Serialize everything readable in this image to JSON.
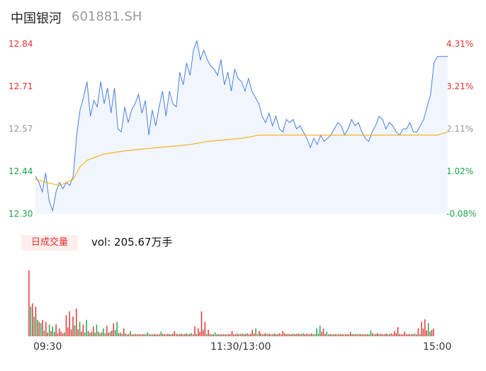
{
  "header": {
    "name": "中国银河",
    "code": "601881.SH"
  },
  "colors": {
    "up": "#e2312f",
    "down": "#1aa34a",
    "neutral": "#999999",
    "price_line": "#4a7fe0",
    "avg_line": "#f5b31f"
  },
  "chart_data": {
    "type": "line",
    "price_ticks": [
      "12.84",
      "12.71",
      "12.57",
      "12.44",
      "12.30"
    ],
    "pct_ticks": [
      "4.31%",
      "3.21%",
      "2.11%",
      "1.02%",
      "-0.08%"
    ],
    "ylim": [
      12.3,
      12.84
    ],
    "prev_close": 12.31,
    "x_labels": [
      "09:30",
      "11:30/13:00",
      "15:00"
    ],
    "price_keyframes": [
      [
        0,
        12.42
      ],
      [
        2,
        12.4
      ],
      [
        4,
        12.37
      ],
      [
        6,
        12.43
      ],
      [
        8,
        12.34
      ],
      [
        10,
        12.31
      ],
      [
        12,
        12.37
      ],
      [
        14,
        12.4
      ],
      [
        16,
        12.38
      ],
      [
        18,
        12.4
      ],
      [
        20,
        12.39
      ],
      [
        22,
        12.42
      ],
      [
        24,
        12.55
      ],
      [
        26,
        12.63
      ],
      [
        28,
        12.67
      ],
      [
        30,
        12.72
      ],
      [
        32,
        12.61
      ],
      [
        34,
        12.66
      ],
      [
        36,
        12.64
      ],
      [
        38,
        12.72
      ],
      [
        40,
        12.65
      ],
      [
        42,
        12.7
      ],
      [
        44,
        12.62
      ],
      [
        46,
        12.7
      ],
      [
        48,
        12.57
      ],
      [
        50,
        12.56
      ],
      [
        52,
        12.64
      ],
      [
        54,
        12.59
      ],
      [
        56,
        12.63
      ],
      [
        58,
        12.65
      ],
      [
        60,
        12.68
      ],
      [
        62,
        12.62
      ],
      [
        64,
        12.66
      ],
      [
        66,
        12.55
      ],
      [
        68,
        12.63
      ],
      [
        70,
        12.58
      ],
      [
        72,
        12.64
      ],
      [
        74,
        12.69
      ],
      [
        76,
        12.61
      ],
      [
        78,
        12.69
      ],
      [
        80,
        12.65
      ],
      [
        82,
        12.64
      ],
      [
        84,
        12.75
      ],
      [
        86,
        12.71
      ],
      [
        88,
        12.78
      ],
      [
        90,
        12.74
      ],
      [
        92,
        12.82
      ],
      [
        94,
        12.85
      ],
      [
        96,
        12.79
      ],
      [
        98,
        12.82
      ],
      [
        100,
        12.79
      ],
      [
        102,
        12.77
      ],
      [
        104,
        12.76
      ],
      [
        106,
        12.74
      ],
      [
        108,
        12.79
      ],
      [
        110,
        12.71
      ],
      [
        112,
        12.75
      ],
      [
        114,
        12.69
      ],
      [
        116,
        12.76
      ],
      [
        118,
        12.73
      ],
      [
        120,
        12.72
      ],
      [
        122,
        12.69
      ],
      [
        124,
        12.73
      ],
      [
        126,
        12.69
      ],
      [
        128,
        12.67
      ],
      [
        130,
        12.65
      ],
      [
        132,
        12.61
      ],
      [
        134,
        12.59
      ],
      [
        136,
        12.62
      ],
      [
        138,
        12.58
      ],
      [
        140,
        12.61
      ],
      [
        142,
        12.57
      ],
      [
        144,
        12.56
      ],
      [
        146,
        12.6
      ],
      [
        148,
        12.59
      ],
      [
        150,
        12.6
      ],
      [
        152,
        12.57
      ],
      [
        154,
        12.58
      ],
      [
        156,
        12.56
      ],
      [
        158,
        12.54
      ],
      [
        160,
        12.51
      ],
      [
        162,
        12.54
      ],
      [
        164,
        12.52
      ],
      [
        166,
        12.55
      ],
      [
        168,
        12.53
      ],
      [
        170,
        12.54
      ],
      [
        172,
        12.55
      ],
      [
        174,
        12.57
      ],
      [
        176,
        12.59
      ],
      [
        178,
        12.58
      ],
      [
        180,
        12.55
      ],
      [
        182,
        12.57
      ],
      [
        184,
        12.6
      ],
      [
        186,
        12.58
      ],
      [
        188,
        12.59
      ],
      [
        190,
        12.56
      ],
      [
        192,
        12.54
      ],
      [
        194,
        12.53
      ],
      [
        196,
        12.56
      ],
      [
        198,
        12.58
      ],
      [
        200,
        12.61
      ],
      [
        202,
        12.6
      ],
      [
        204,
        12.57
      ],
      [
        206,
        12.59
      ],
      [
        208,
        12.58
      ],
      [
        210,
        12.56
      ],
      [
        212,
        12.55
      ],
      [
        214,
        12.57
      ],
      [
        216,
        12.57
      ],
      [
        218,
        12.59
      ],
      [
        220,
        12.56
      ],
      [
        222,
        12.56
      ],
      [
        224,
        12.58
      ],
      [
        226,
        12.6
      ],
      [
        228,
        12.64
      ],
      [
        230,
        12.68
      ],
      [
        232,
        12.78
      ],
      [
        234,
        12.8
      ],
      [
        240,
        12.8
      ]
    ],
    "avg_keyframes": [
      [
        0,
        12.41
      ],
      [
        6,
        12.4
      ],
      [
        14,
        12.39
      ],
      [
        18,
        12.4
      ],
      [
        22,
        12.41
      ],
      [
        26,
        12.45
      ],
      [
        30,
        12.47
      ],
      [
        35,
        12.48
      ],
      [
        40,
        12.49
      ],
      [
        52,
        12.5
      ],
      [
        70,
        12.51
      ],
      [
        90,
        12.52
      ],
      [
        100,
        12.53
      ],
      [
        120,
        12.54
      ],
      [
        130,
        12.55
      ],
      [
        170,
        12.55
      ],
      [
        200,
        12.55
      ],
      [
        234,
        12.55
      ],
      [
        240,
        12.56
      ]
    ],
    "volume": {
      "label": "日成交量",
      "summary": "vol: 205.67万手",
      "ymax": 100,
      "peaks": [
        [
          0,
          100,
          "up"
        ],
        [
          1,
          45,
          "down"
        ],
        [
          2,
          50,
          "up"
        ],
        [
          3,
          30,
          "down"
        ],
        [
          4,
          45,
          "up"
        ],
        [
          5,
          25,
          "down"
        ],
        [
          6,
          22,
          "up"
        ],
        [
          7,
          20,
          "down"
        ],
        [
          8,
          25,
          "up"
        ],
        [
          10,
          22,
          "up"
        ],
        [
          12,
          18,
          "down"
        ],
        [
          14,
          15,
          "down"
        ],
        [
          16,
          18,
          "up"
        ],
        [
          18,
          12,
          "up"
        ],
        [
          22,
          32,
          "up"
        ],
        [
          24,
          38,
          "up"
        ],
        [
          26,
          30,
          "up"
        ],
        [
          28,
          42,
          "up"
        ],
        [
          30,
          22,
          "down"
        ],
        [
          32,
          18,
          "up"
        ],
        [
          34,
          25,
          "down"
        ],
        [
          38,
          15,
          "up"
        ],
        [
          40,
          18,
          "down"
        ],
        [
          44,
          12,
          "down"
        ],
        [
          46,
          16,
          "up"
        ],
        [
          50,
          20,
          "up"
        ],
        [
          52,
          22,
          "down"
        ],
        [
          56,
          12,
          "up"
        ],
        [
          60,
          8,
          "down"
        ],
        [
          70,
          6,
          "down"
        ],
        [
          78,
          7,
          "down"
        ],
        [
          86,
          8,
          "up"
        ],
        [
          98,
          15,
          "up"
        ],
        [
          100,
          12,
          "up"
        ],
        [
          102,
          38,
          "up"
        ],
        [
          104,
          22,
          "up"
        ],
        [
          106,
          10,
          "up"
        ],
        [
          110,
          6,
          "down"
        ],
        [
          120,
          8,
          "up"
        ],
        [
          132,
          10,
          "up"
        ],
        [
          134,
          12,
          "down"
        ],
        [
          136,
          8,
          "up"
        ],
        [
          150,
          8,
          "up"
        ],
        [
          170,
          12,
          "down"
        ],
        [
          172,
          16,
          "down"
        ],
        [
          174,
          12,
          "up"
        ],
        [
          176,
          7,
          "down"
        ],
        [
          190,
          6,
          "up"
        ],
        [
          202,
          9,
          "down"
        ],
        [
          216,
          8,
          "up"
        ],
        [
          218,
          14,
          "up"
        ],
        [
          222,
          7,
          "up"
        ],
        [
          230,
          12,
          "up"
        ],
        [
          232,
          22,
          "up"
        ],
        [
          234,
          26,
          "up"
        ],
        [
          236,
          20,
          "down"
        ]
      ]
    }
  }
}
